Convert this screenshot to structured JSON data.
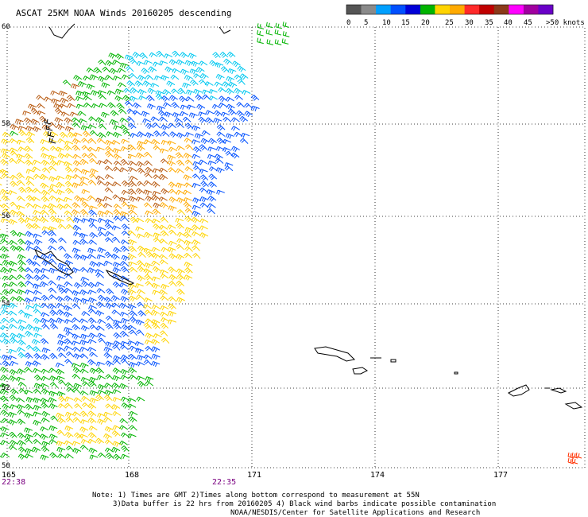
{
  "title": "ASCAT 25KM NOAA Winds 20160205 descending",
  "legend": {
    "colors": [
      "#555555",
      "#8a8a8a",
      "#00a0ff",
      "#0050ff",
      "#0000d8",
      "#00b400",
      "#ffd400",
      "#ffaa00",
      "#ff2a2a",
      "#c00000",
      "#8b3a1a",
      "#ff00ff",
      "#a000a0",
      "#6a00c8"
    ],
    "labels": [
      "0",
      "5",
      "10",
      "15",
      "20",
      "25",
      "30",
      "35",
      "40",
      "45",
      ">50 knots"
    ]
  },
  "lat_labels": [
    "60",
    "58",
    "56",
    "54",
    "52",
    "50"
  ],
  "lon_labels": [
    "165",
    "168",
    "171",
    "174",
    "177"
  ],
  "times": [
    "22:38",
    "22:35"
  ],
  "notes": {
    "line1": "Note: 1) Times are GMT 2)Times along bottom correspond to measurement at 55N",
    "line2": "3)Data buffer is 22 hrs from 20160205 4) Black wind barbs indicate possible contamination",
    "line3": "NOAA/NESDIS/Center for Satellite Applications and Research"
  },
  "wind_palette": {
    "cyan": "#00c8f0",
    "blue": "#0050ff",
    "green": "#00b400",
    "yellow": "#ffd400",
    "orange": "#ffaa00",
    "brown": "#b85a10",
    "black": "#000000",
    "red": "#ff3000"
  }
}
